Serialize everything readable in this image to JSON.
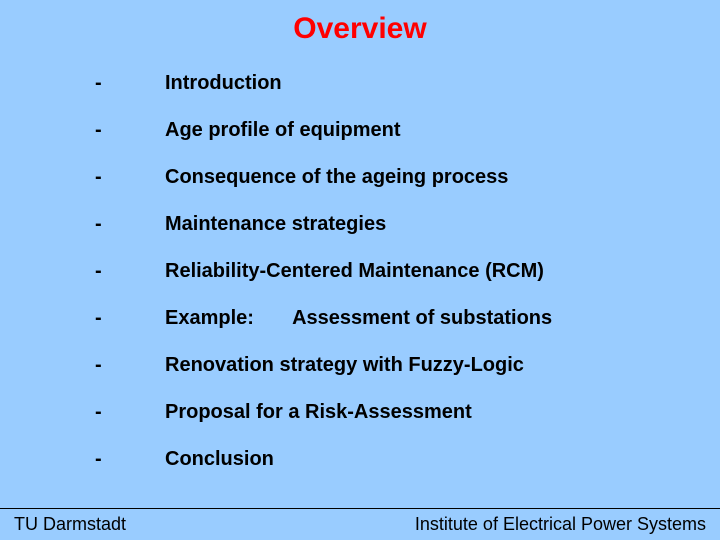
{
  "colors": {
    "background": "#99ccff",
    "title": "#ff0000",
    "text": "#000000",
    "footer_text": "#000000",
    "divider": "#000000"
  },
  "typography": {
    "title_fontsize": 30,
    "title_weight": "bold",
    "item_fontsize": 20,
    "item_weight": "bold",
    "footer_fontsize": 18
  },
  "title": "Overview",
  "bullet_char": "-",
  "items": [
    "Introduction",
    "Age profile of equipment",
    "Consequence of the ageing process",
    "Maintenance strategies",
    "Reliability-Centered Maintenance (RCM)",
    "Example:       Assessment of substations",
    "Renovation strategy with Fuzzy-Logic",
    "Proposal for a Risk-Assessment",
    "Conclusion"
  ],
  "footer": {
    "left": "TU Darmstadt",
    "right": "Institute of  Electrical Power Systems"
  }
}
